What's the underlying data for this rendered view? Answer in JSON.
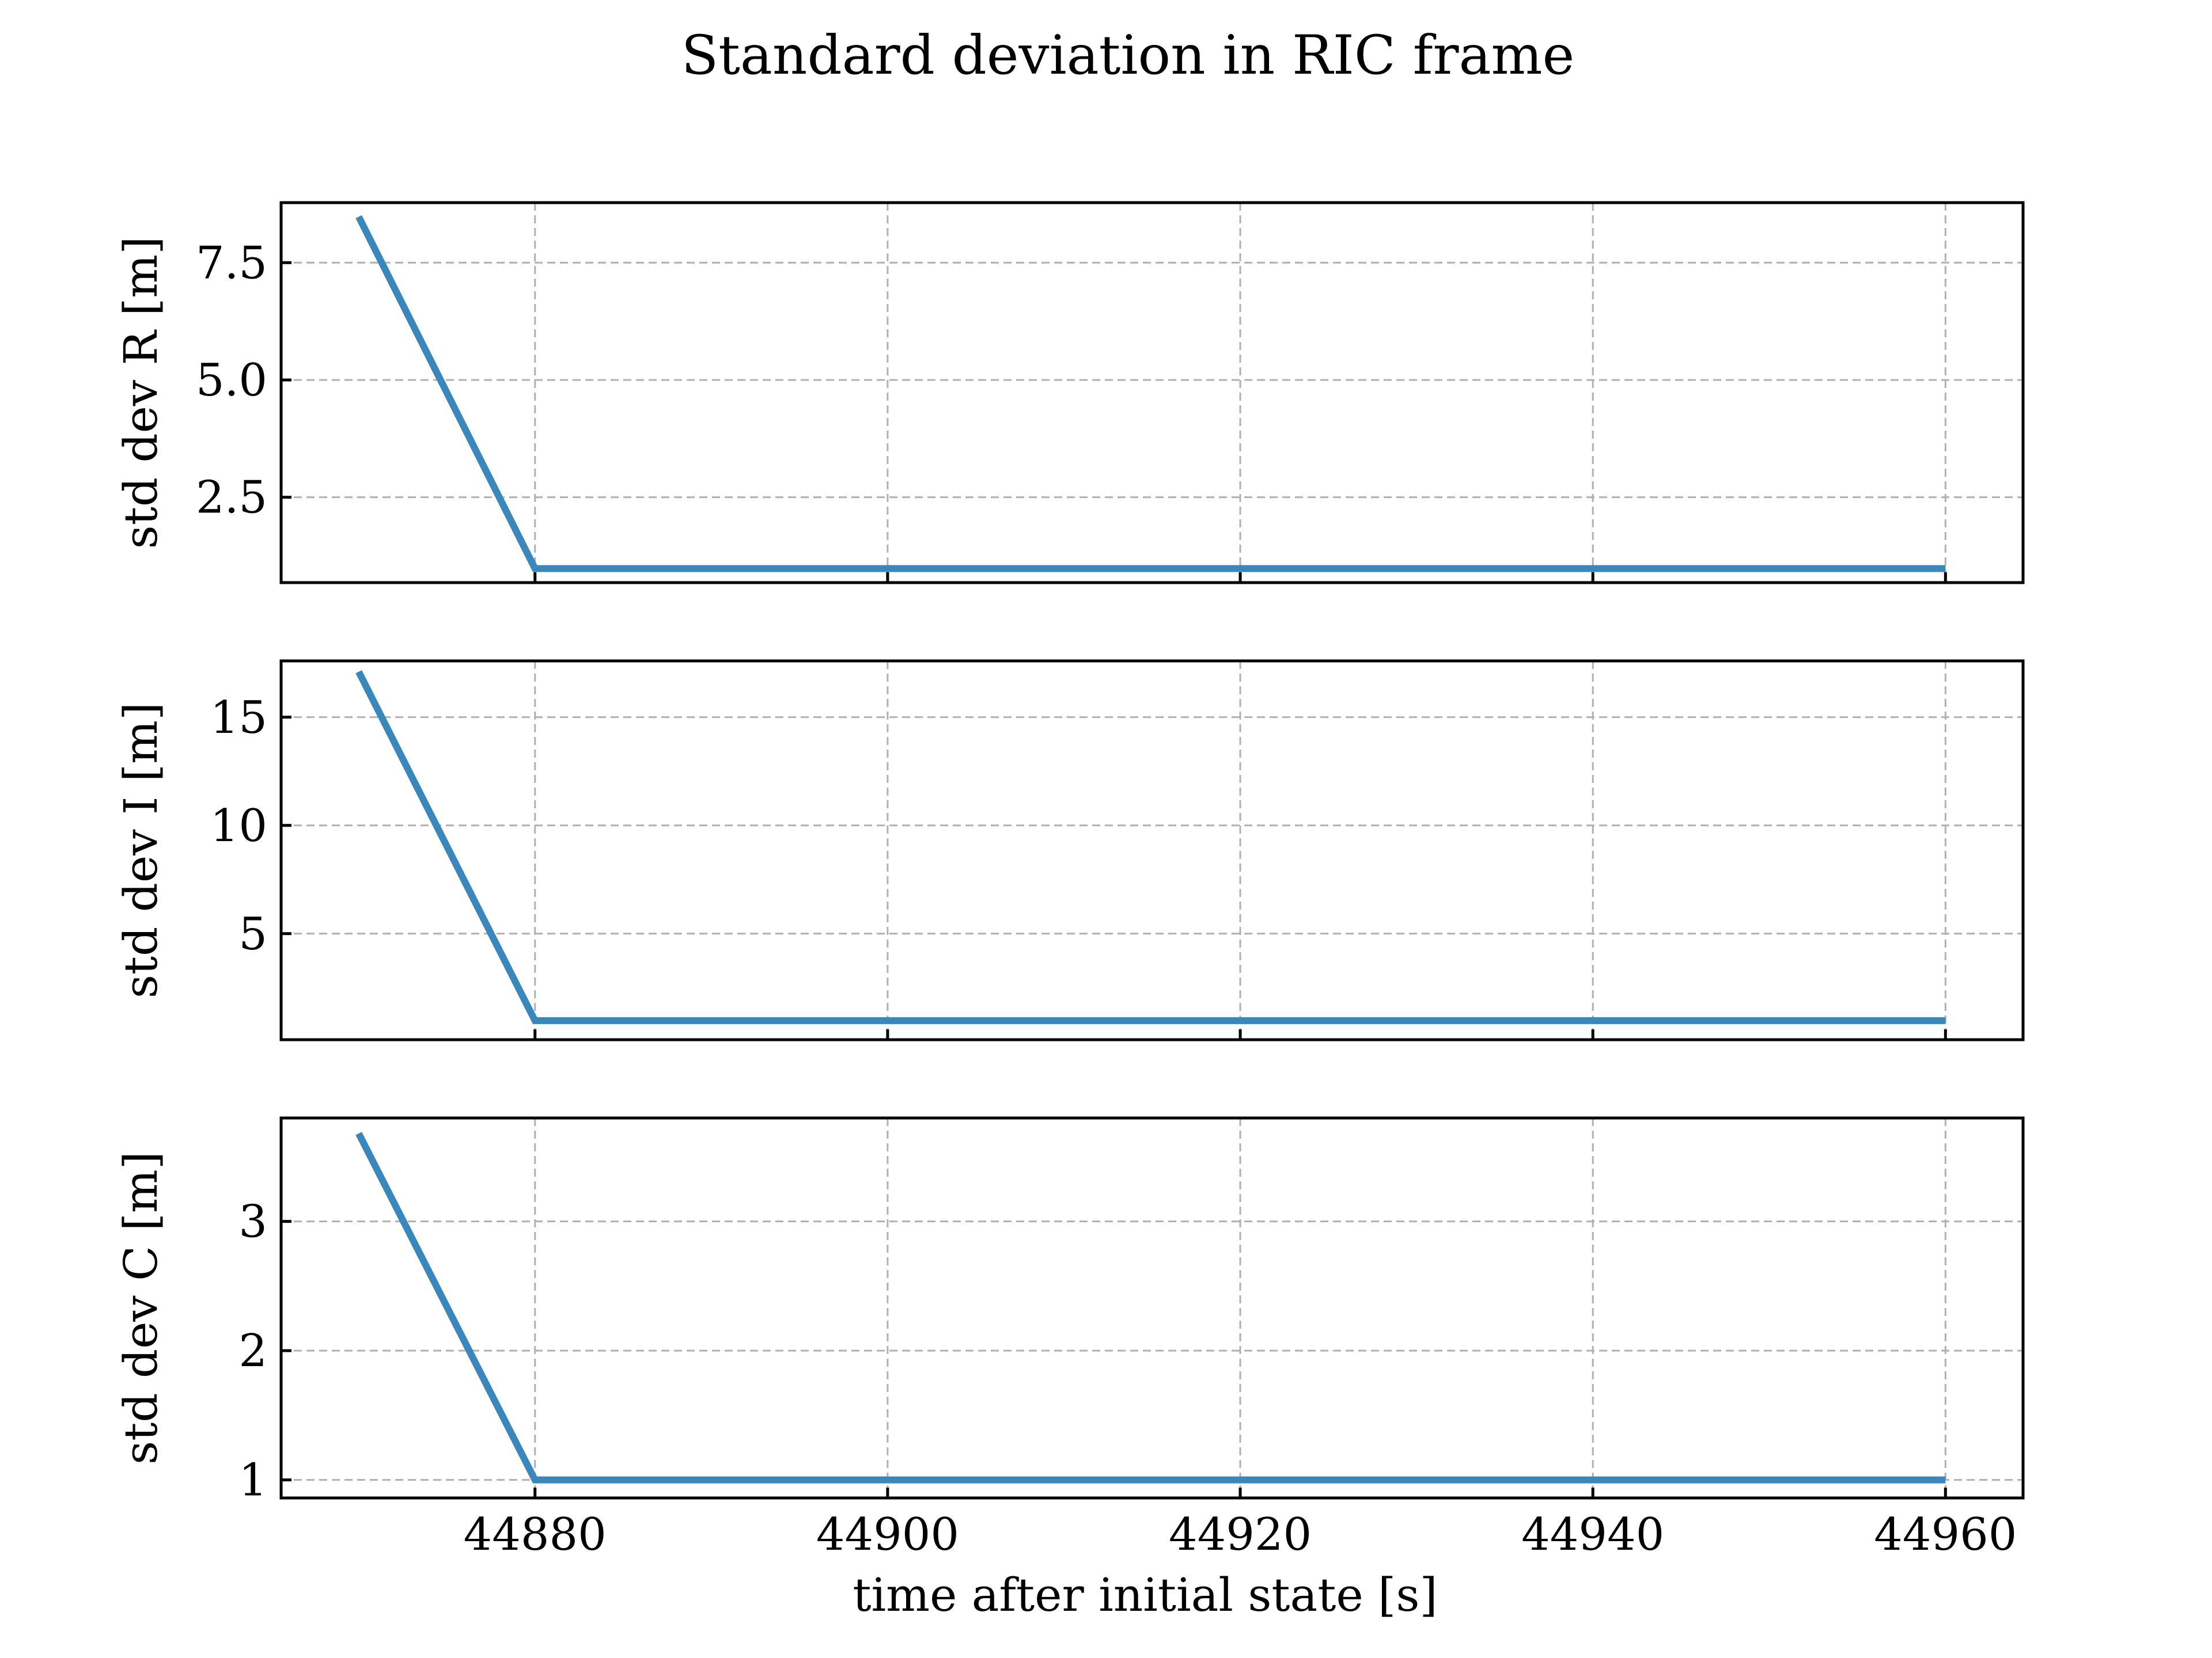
{
  "figure": {
    "title": "Standard deviation in RIC frame",
    "xlabel": "time after initial state [s]"
  },
  "colors": {
    "line": "#3a87bc",
    "grid": "#b0b0b0"
  },
  "chart_data": [
    {
      "type": "line",
      "ylabel": "std dev R [m]",
      "xlim": [
        44865.6,
        44964.4
      ],
      "ylim": [
        0.68,
        8.78
      ],
      "xticks": [
        44880,
        44900,
        44920,
        44940,
        44960
      ],
      "xtick_labels": [
        "44880",
        "44900",
        "44920",
        "44940",
        "44960"
      ],
      "yticks": [
        2.5,
        5.0,
        7.5
      ],
      "ytick_labels": [
        "2.5",
        "5.0",
        "7.5"
      ],
      "show_xtick_labels": false,
      "grid": true,
      "x": [
        44870,
        44880,
        44960
      ],
      "y": [
        8.48,
        0.98,
        0.98
      ]
    },
    {
      "type": "line",
      "ylabel": "std dev I [m]",
      "xlim": [
        44865.6,
        44964.4
      ],
      "ylim": [
        0.1,
        17.6
      ],
      "xticks": [
        44880,
        44900,
        44920,
        44940,
        44960
      ],
      "xtick_labels": [
        "44880",
        "44900",
        "44920",
        "44940",
        "44960"
      ],
      "yticks": [
        5,
        10,
        15
      ],
      "ytick_labels": [
        "5",
        "10",
        "15"
      ],
      "show_xtick_labels": false,
      "grid": true,
      "x": [
        44870,
        44880,
        44960
      ],
      "y": [
        17.1,
        0.98,
        0.98
      ]
    },
    {
      "type": "line",
      "ylabel": "std dev C [m]",
      "xlim": [
        44865.6,
        44964.4
      ],
      "ylim": [
        0.86,
        3.8
      ],
      "xticks": [
        44880,
        44900,
        44920,
        44940,
        44960
      ],
      "xtick_labels": [
        "44880",
        "44900",
        "44920",
        "44940",
        "44960"
      ],
      "yticks": [
        1,
        2,
        3
      ],
      "ytick_labels": [
        "1",
        "2",
        "3"
      ],
      "show_xtick_labels": true,
      "grid": true,
      "x": [
        44870,
        44880,
        44960
      ],
      "y": [
        3.68,
        1.0,
        1.0
      ]
    }
  ]
}
